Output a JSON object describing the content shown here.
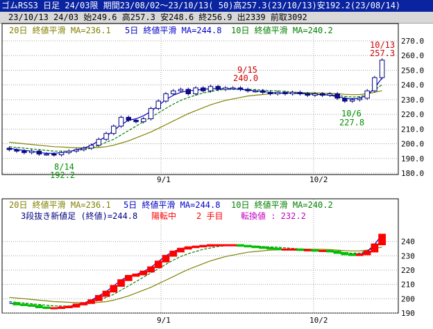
{
  "header": {
    "title": "ゴムRSS3 日足 24/03限 期間23/08/02～23/10/13( 50)高257.3(23/10/13)安192.2(23/08/14)",
    "info": "23/10/13 24/03 始249.6 高257.3 安248.6 終256.9 出2339 前取3092"
  },
  "legend_top": {
    "ma20": "20日 終値平滑 MA=236.1",
    "ma5": "5日 終値平滑 MA=244.8",
    "ma10": "10日 終値平滑 MA=240.2"
  },
  "legend_bottom": {
    "ma20": "20日 終値平滑 MA=236.1",
    "ma5": "5日 終値平滑 MA=244.8",
    "ma10": "10日 終値平滑 MA=240.2",
    "line3": "3段抜き新値足 (終値)=244.8",
    "turn": "陽転中",
    "step": "2 手目",
    "conv": "転換値 : 232.2"
  },
  "annotations": {
    "a1_date": "8/14",
    "a1_val": "192.2",
    "a2_date": "9/15",
    "a2_val": "240.0",
    "a3_date": "10/6",
    "a3_val": "227.8",
    "a4_date": "10/13",
    "a4_val": "257.3"
  },
  "colors": {
    "title_bg": "#0a24a0",
    "candle_up": "#ffffff",
    "candle_down": "#101080",
    "ma5": "#0000c8",
    "ma10": "#008000",
    "ma20": "#808000",
    "brick_up": "#ff0000",
    "brick_down": "#00c000",
    "annot_high": "#d00000",
    "annot_low": "#009000"
  },
  "chart_data": [
    {
      "type": "candlestick",
      "title": "ゴムRSS3 日足 24/03限",
      "ylim": [
        180,
        270
      ],
      "yticks": [
        "180.0",
        "190.0",
        "200.0",
        "210.0",
        "220.0",
        "230.0",
        "240.0",
        "250.0",
        "260.0",
        "270.0"
      ],
      "xticks": [
        "9/1",
        "10/2"
      ],
      "close": [
        196,
        195,
        194,
        195,
        193,
        193,
        192.5,
        194,
        195,
        196,
        197,
        199,
        203,
        207,
        212,
        218,
        216,
        215,
        217,
        224,
        229,
        234,
        236,
        237,
        234,
        238,
        236,
        239,
        237,
        238,
        238,
        237,
        236,
        236,
        235,
        234,
        235,
        234,
        235,
        234,
        233,
        234,
        233,
        234,
        231,
        229,
        230,
        231,
        236,
        245,
        256.9
      ],
      "ma5": [
        197,
        196,
        195.5,
        195,
        194,
        193.5,
        193.5,
        194,
        194.5,
        196,
        197,
        199,
        202,
        205,
        209,
        213,
        216,
        217,
        219,
        222,
        226,
        230,
        233,
        235,
        236,
        236.5,
        237,
        237.5,
        237.5,
        237.5,
        237.5,
        237,
        236.5,
        236,
        235.5,
        235,
        234.5,
        234.5,
        234.5,
        234,
        234,
        233.5,
        233.5,
        233,
        232,
        231,
        230.5,
        231,
        233,
        238,
        244.8
      ],
      "ma10": [
        198,
        197.5,
        197,
        196.5,
        196,
        195.5,
        195,
        195,
        195,
        195.5,
        196,
        197,
        199,
        201,
        203,
        206,
        209,
        212,
        215,
        218,
        221,
        224,
        227,
        229.5,
        231.5,
        233,
        234.5,
        235.5,
        236.5,
        237,
        237,
        237,
        237,
        236.8,
        236.5,
        236.2,
        236,
        235.6,
        235.2,
        234.8,
        234.4,
        234,
        233.6,
        233.2,
        232.8,
        232.2,
        231.8,
        232,
        233.5,
        236.5,
        240.2
      ],
      "ma20": [
        201,
        200.5,
        200,
        199.5,
        199,
        198.5,
        198,
        197.8,
        197.5,
        197.3,
        197.2,
        197.2,
        197.5,
        198,
        199,
        200.5,
        202,
        204,
        206,
        208,
        210.5,
        213,
        215.5,
        218,
        220.5,
        222.5,
        224.5,
        226.5,
        228,
        229.5,
        230.5,
        231.5,
        232.5,
        233,
        233.5,
        234,
        234.2,
        234.5,
        234.6,
        234.7,
        234.7,
        234.6,
        234.5,
        234.3,
        234,
        233.6,
        233.4,
        233.5,
        234,
        235,
        236.1
      ]
    },
    {
      "type": "three-line-break",
      "title": "3段抜き新値足 (終値)",
      "ylim": [
        190,
        250
      ],
      "yticks": [
        "190",
        "200",
        "210",
        "220",
        "230",
        "240"
      ],
      "xticks": [
        "9/1",
        "10/2"
      ],
      "turn_value": 232.2
    }
  ]
}
